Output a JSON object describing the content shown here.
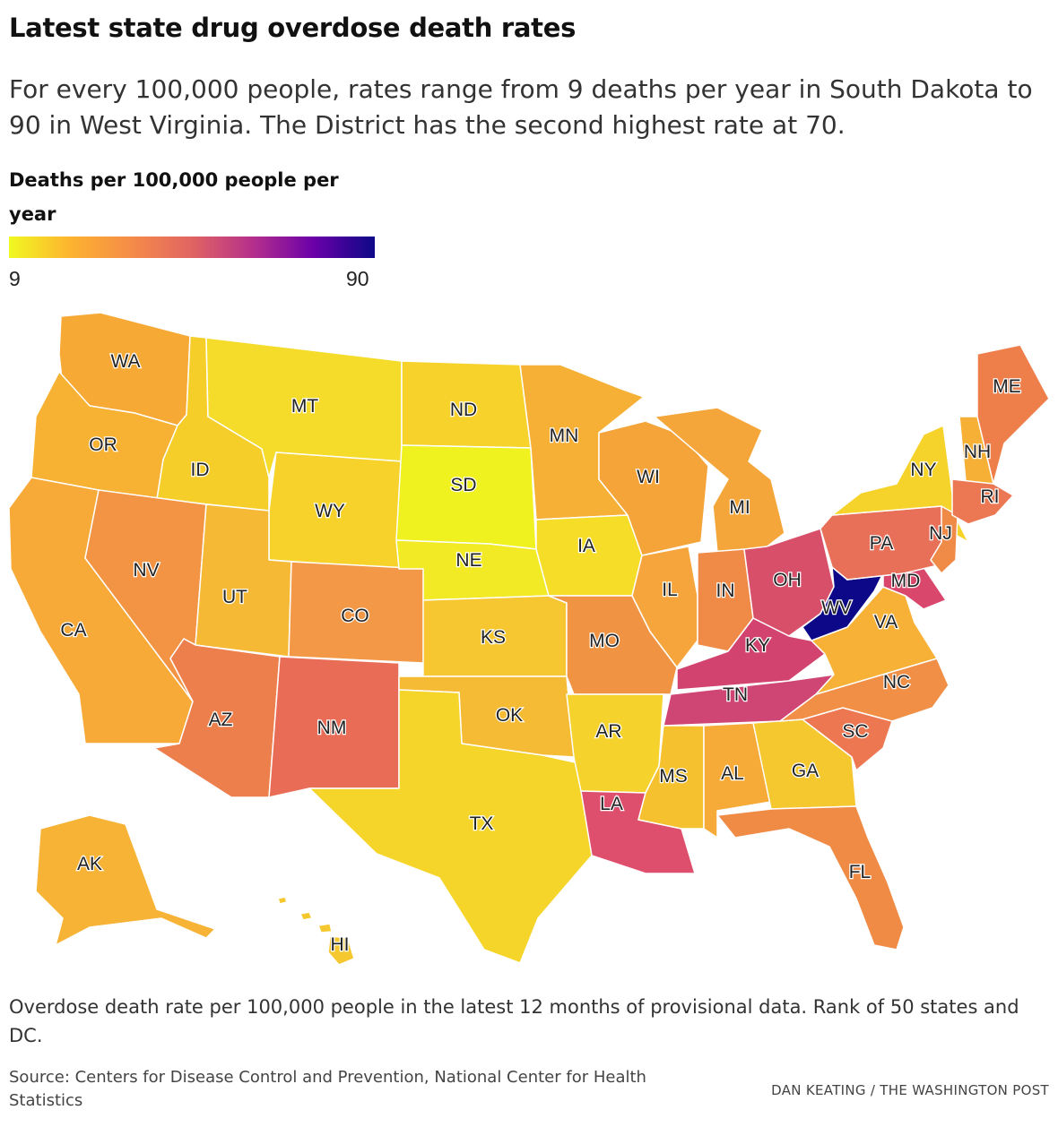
{
  "title": "Latest state drug overdose death rates",
  "subtitle": "For every 100,000 people, rates range from 9 deaths per year in South Dakota to 90 in West Virginia. The District has the second highest rate at 70.",
  "legend": {
    "title": "Deaths per 100,000 people per year",
    "min_label": "9",
    "max_label": "90",
    "min": 9,
    "max": 90,
    "colors": [
      "#f0f921",
      "#fdb32f",
      "#f58c48",
      "#e16462",
      "#b52f8c",
      "#6a00a8",
      "#0d0887"
    ]
  },
  "states": [
    {
      "label": "WA",
      "color": "#f7a935"
    },
    {
      "label": "OR",
      "color": "#f7b133"
    },
    {
      "label": "CA",
      "color": "#f7aa38"
    },
    {
      "label": "ID",
      "color": "#f6ce2a"
    },
    {
      "label": "NV",
      "color": "#f29444"
    },
    {
      "label": "MT",
      "color": "#f5dc2a"
    },
    {
      "label": "WY",
      "color": "#f6d22b"
    },
    {
      "label": "UT",
      "color": "#f5b936"
    },
    {
      "label": "CO",
      "color": "#f29846"
    },
    {
      "label": "AZ",
      "color": "#ed7f4d"
    },
    {
      "label": "NM",
      "color": "#e96c57"
    },
    {
      "label": "ND",
      "color": "#f6d22b"
    },
    {
      "label": "SD",
      "color": "#f0f21f"
    },
    {
      "label": "NE",
      "color": "#f1ea24"
    },
    {
      "label": "KS",
      "color": "#f6c730"
    },
    {
      "label": "OK",
      "color": "#f6bb34"
    },
    {
      "label": "TX",
      "color": "#f6d52b"
    },
    {
      "label": "MN",
      "color": "#f6b036"
    },
    {
      "label": "IA",
      "color": "#f6dd28"
    },
    {
      "label": "MO",
      "color": "#f09444"
    },
    {
      "label": "AR",
      "color": "#f6d22c"
    },
    {
      "label": "LA",
      "color": "#dd4f6c"
    },
    {
      "label": "WI",
      "color": "#f5a43a"
    },
    {
      "label": "IL",
      "color": "#f6a53c"
    },
    {
      "label": "MI",
      "color": "#f5a63a"
    },
    {
      "label": "IN",
      "color": "#ef8a47"
    },
    {
      "label": "OH",
      "color": "#d84f6a"
    },
    {
      "label": "KY",
      "color": "#d2446f"
    },
    {
      "label": "TN",
      "color": "#cf4674"
    },
    {
      "label": "MS",
      "color": "#f6c12f"
    },
    {
      "label": "AL",
      "color": "#f6ab38"
    },
    {
      "label": "GA",
      "color": "#f6c830"
    },
    {
      "label": "FL",
      "color": "#f08b46"
    },
    {
      "label": "SC",
      "color": "#ec7751"
    },
    {
      "label": "NC",
      "color": "#f08f45"
    },
    {
      "label": "VA",
      "color": "#f6b136"
    },
    {
      "label": "WV",
      "color": "#0d0887"
    },
    {
      "label": "MD",
      "color": "#d9486c"
    },
    {
      "label": "PA",
      "color": "#e87059"
    },
    {
      "label": "NY",
      "color": "#f6d32a"
    },
    {
      "label": "NJ",
      "color": "#ef8a47"
    },
    {
      "label": "NH",
      "color": "#f6b035"
    },
    {
      "label": "ME",
      "color": "#ee7f4b"
    },
    {
      "label": "RI",
      "color": "#eb7852"
    },
    {
      "label": "AK",
      "color": "#f6b335"
    },
    {
      "label": "HI",
      "color": "#f6c830"
    }
  ],
  "note": "Overdose death rate per 100,000 people in the latest 12 months of provisional data. Rank of 50 states and DC.",
  "source": "Source: Centers for Disease Control and Prevention, National Center for Health Statistics",
  "credit": "DAN KEATING / THE WASHINGTON POST"
}
